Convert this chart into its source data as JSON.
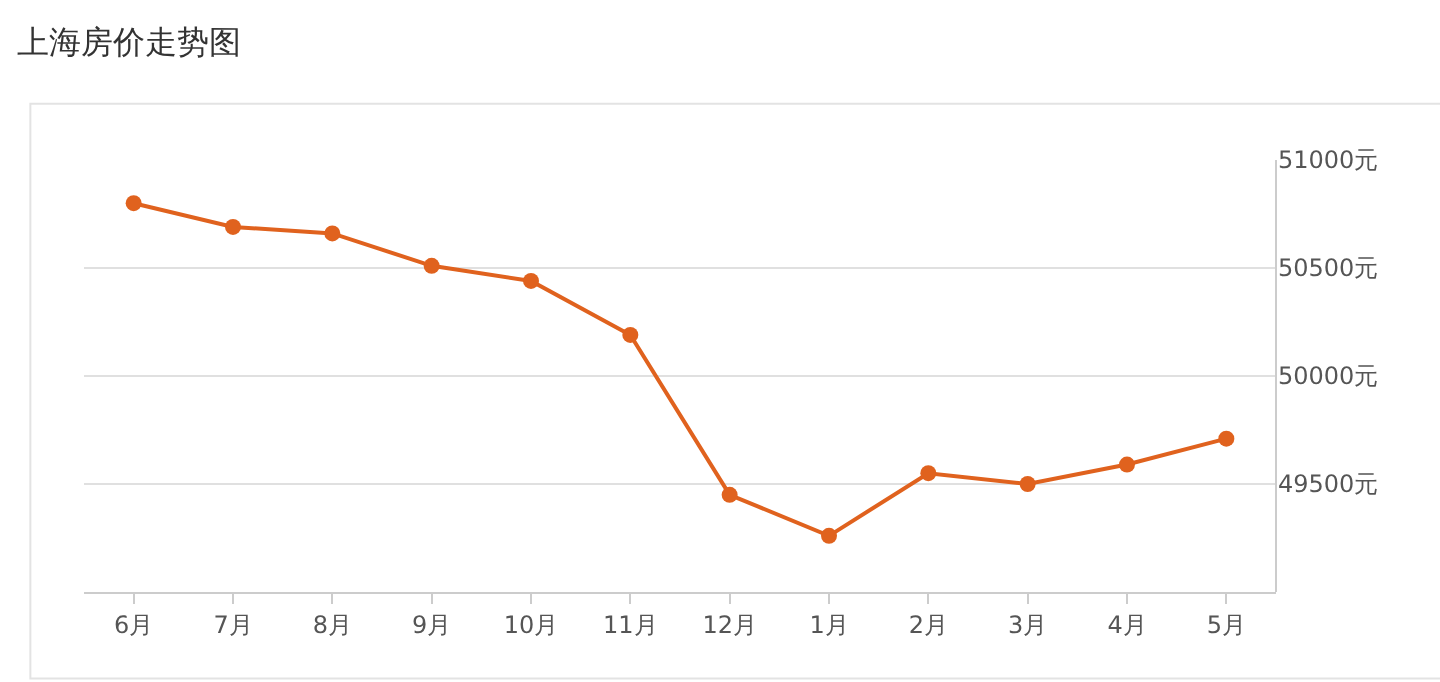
{
  "chart_data": {
    "type": "line",
    "title": "上海房价走势图",
    "categories": [
      "6月",
      "7月",
      "8月",
      "9月",
      "10月",
      "11月",
      "12月",
      "1月",
      "2月",
      "3月",
      "4月",
      "5月"
    ],
    "series": [
      {
        "color": "#e0621e",
        "values": [
          50800,
          50690,
          50660,
          50510,
          50440,
          50190,
          49450,
          49260,
          49550,
          49500,
          49590,
          49710
        ]
      }
    ],
    "ylim": [
      49000,
      51000
    ],
    "yticks": [
      {
        "value": 49500,
        "label": "49500元"
      },
      {
        "value": 50000,
        "label": "50000元"
      },
      {
        "value": 50500,
        "label": "50500元"
      },
      {
        "value": 51000,
        "label": "51000元"
      }
    ],
    "grid": "y",
    "marker": "circle",
    "line_style": "solid"
  }
}
